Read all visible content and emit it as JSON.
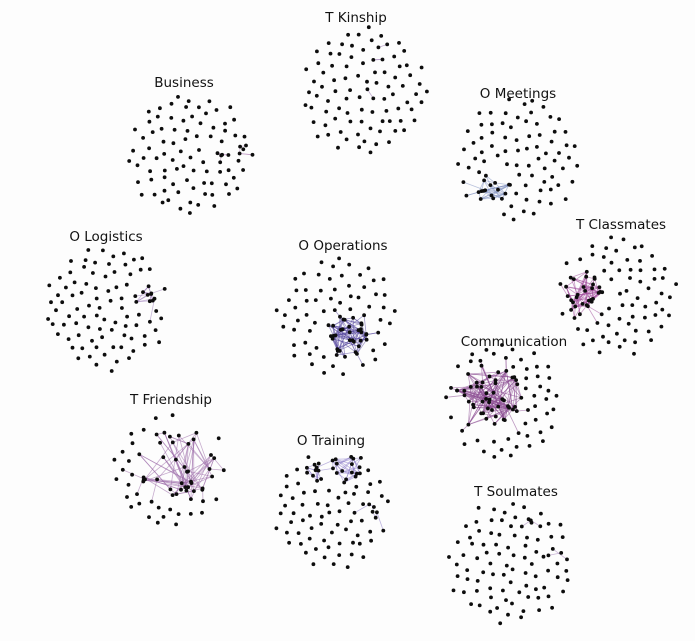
{
  "networks": [
    {
      "id": "t-kinship",
      "title": "T Kinship",
      "edge_color": "#8e6aa8",
      "density": "sparse"
    },
    {
      "id": "business",
      "title": "Business",
      "edge_color": "#b07fb7",
      "density": "sparse"
    },
    {
      "id": "o-meetings",
      "title": "O Meetings",
      "edge_color": "#7f8fc0",
      "density": "one-cluster"
    },
    {
      "id": "o-logistics",
      "title": "O Logistics",
      "edge_color": "#9a7ab8",
      "density": "one-cluster"
    },
    {
      "id": "o-operations",
      "title": "O Operations",
      "edge_color": "#5a4aa0",
      "density": "dense-cluster"
    },
    {
      "id": "t-classmates",
      "title": "T Classmates",
      "edge_color": "#a04a9a",
      "density": "dense-cluster"
    },
    {
      "id": "communication",
      "title": "Communication",
      "edge_color": "#8a4a92",
      "density": "dense-core"
    },
    {
      "id": "t-friendship",
      "title": "T Friendship",
      "edge_color": "#9a6aa8",
      "density": "web"
    },
    {
      "id": "o-training",
      "title": "O Training",
      "edge_color": "#8a7ac8",
      "density": "two-clusters"
    },
    {
      "id": "t-soulmates",
      "title": "T Soulmates",
      "edge_color": "#a07ab8",
      "density": "sparse"
    }
  ]
}
